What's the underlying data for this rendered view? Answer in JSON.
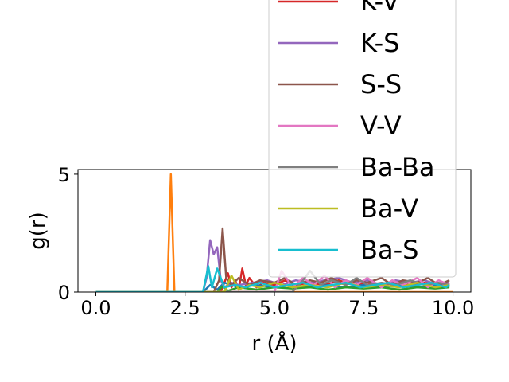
{
  "chart_data": {
    "type": "line",
    "title": "",
    "xlabel": "r (Å)",
    "ylabel": "g(r)",
    "xlim": [
      -0.5,
      10.5
    ],
    "ylim": [
      0,
      5.2
    ],
    "xticks": [
      {
        "value": 0.0,
        "label": "0.0"
      },
      {
        "value": 2.5,
        "label": "2.5"
      },
      {
        "value": 5.0,
        "label": "5.0"
      },
      {
        "value": 7.5,
        "label": "7.5"
      },
      {
        "value": 10.0,
        "label": "10.0"
      }
    ],
    "yticks": [
      {
        "value": 0,
        "label": "0"
      },
      {
        "value": 5,
        "label": "5"
      }
    ],
    "grid": false,
    "legend_position": "upper-right",
    "legend_visible": [
      "K-V",
      "K-S",
      "S-S",
      "V-V",
      "Ba-Ba",
      "Ba-V",
      "Ba-S"
    ],
    "series": [
      {
        "name": "",
        "color": "#d62728",
        "x": [
          0,
          3.5,
          3.7,
          3.8,
          3.9,
          4.0,
          4.1,
          4.2,
          4.3,
          4.5,
          4.7,
          5.0,
          5.3,
          5.6,
          6.0,
          6.4,
          6.8,
          7.2,
          7.6,
          8.0,
          8.4,
          8.8,
          9.2,
          9.6,
          9.9
        ],
        "y": [
          0,
          0,
          0.8,
          0.2,
          0.5,
          0.1,
          1.0,
          0.3,
          0.6,
          0.2,
          0.4,
          0.3,
          0.5,
          0.3,
          0.4,
          0.3,
          0.5,
          0.3,
          0.4,
          0.3,
          0.4,
          0.3,
          0.4,
          0.3,
          0.4
        ]
      },
      {
        "name": "",
        "color": "#1f77b4",
        "x": [
          0,
          3.0,
          3.2,
          3.4,
          3.6,
          4.0,
          4.5,
          5.0,
          5.5,
          6.0,
          6.5,
          7.0,
          7.5,
          8.0,
          8.5,
          9.0,
          9.5,
          9.9
        ],
        "y": [
          0,
          0,
          0.3,
          0.1,
          0.4,
          0.2,
          0.3,
          0.2,
          0.3,
          0.2,
          0.3,
          0.2,
          0.3,
          0.2,
          0.3,
          0.2,
          0.3,
          0.2
        ]
      },
      {
        "name": "",
        "color": "#ff7f0e",
        "x": [
          0,
          2.0,
          2.1,
          2.2,
          2.3,
          10.0
        ],
        "y": [
          0,
          0,
          5.0,
          0,
          0,
          0
        ]
      },
      {
        "name": "",
        "color": "#2ca02c",
        "x": [
          0,
          3.4,
          3.55,
          3.7,
          4.0,
          4.5,
          5.0,
          5.5,
          6.0,
          6.5,
          7.0,
          7.5,
          8.0,
          8.5,
          9.0,
          9.5,
          9.9
        ],
        "y": [
          0,
          0,
          0.25,
          0.05,
          0.2,
          0.1,
          0.2,
          0.15,
          0.2,
          0.1,
          0.2,
          0.15,
          0.2,
          0.1,
          0.2,
          0.15,
          0.2
        ]
      },
      {
        "name": "K-S",
        "color": "#9467bd",
        "x": [
          0,
          3.0,
          3.1,
          3.2,
          3.3,
          3.4,
          3.5,
          3.6,
          3.8,
          4.0,
          4.4,
          4.8,
          5.2,
          5.6,
          6.0,
          6.4,
          6.8,
          7.2,
          7.6,
          8.0,
          8.4,
          8.8,
          9.2,
          9.6,
          9.9
        ],
        "y": [
          0,
          0,
          0.6,
          2.2,
          1.6,
          1.9,
          0.5,
          0.2,
          0.4,
          0.3,
          0.4,
          0.5,
          0.3,
          0.5,
          0.4,
          0.5,
          0.6,
          0.4,
          0.5,
          0.3,
          0.5,
          0.4,
          0.5,
          0.3,
          0.4
        ]
      },
      {
        "name": "S-S",
        "color": "#8c564b",
        "x": [
          0,
          3.3,
          3.45,
          3.55,
          3.65,
          3.8,
          4.0,
          4.3,
          4.6,
          5.0,
          5.3,
          5.6,
          6.0,
          6.3,
          6.6,
          7.0,
          7.3,
          7.6,
          8.0,
          8.3,
          8.6,
          9.0,
          9.3,
          9.6,
          9.9
        ],
        "y": [
          0,
          0,
          0.5,
          2.7,
          0.6,
          0.3,
          0.6,
          0.3,
          0.5,
          0.4,
          0.6,
          0.3,
          0.5,
          0.4,
          0.6,
          0.3,
          0.5,
          0.4,
          0.6,
          0.3,
          0.5,
          0.4,
          0.6,
          0.3,
          0.5
        ]
      },
      {
        "name": "V-V",
        "color": "#e377c2",
        "x": [
          0,
          5.0,
          5.2,
          5.5,
          5.8,
          6.1,
          6.4,
          6.7,
          7.0,
          7.3,
          7.6,
          8.0,
          8.3,
          8.6,
          9.0,
          9.3,
          9.6,
          9.9
        ],
        "y": [
          0,
          0,
          0.9,
          0.2,
          0.6,
          0.3,
          0.7,
          0.2,
          0.5,
          0.3,
          0.6,
          0.2,
          0.5,
          0.3,
          0.6,
          0.2,
          0.5,
          0.3
        ]
      },
      {
        "name": "Ba-Ba",
        "color": "#7f7f7f",
        "x": [
          0,
          5.5,
          5.8,
          6.0,
          6.3,
          6.6,
          7.0,
          7.3,
          7.6,
          8.0,
          8.4,
          8.8,
          9.2,
          9.6,
          9.9
        ],
        "y": [
          0,
          0,
          0.5,
          0.9,
          0.3,
          0.5,
          0.3,
          0.6,
          0.3,
          0.4,
          0.3,
          0.5,
          0.3,
          0.4,
          0.3
        ]
      },
      {
        "name": "Ba-V",
        "color": "#bcbd22",
        "x": [
          0,
          3.6,
          3.8,
          4.0,
          4.3,
          4.6,
          5.0,
          5.5,
          6.0,
          6.5,
          7.0,
          7.5,
          8.0,
          8.5,
          9.0,
          9.5,
          9.9
        ],
        "y": [
          0,
          0,
          0.7,
          0.1,
          0.3,
          0.2,
          0.4,
          0.2,
          0.3,
          0.2,
          0.4,
          0.2,
          0.3,
          0.2,
          0.4,
          0.2,
          0.3
        ]
      },
      {
        "name": "Ba-S",
        "color": "#17becf",
        "x": [
          0,
          3.0,
          3.15,
          3.25,
          3.4,
          3.6,
          3.9,
          4.2,
          4.6,
          5.0,
          5.4,
          5.8,
          6.2,
          6.6,
          7.0,
          7.4,
          7.8,
          8.2,
          8.6,
          9.0,
          9.4,
          9.8,
          9.9
        ],
        "y": [
          0,
          0,
          1.1,
          0.2,
          1.0,
          0.2,
          0.3,
          0.2,
          0.4,
          0.2,
          0.3,
          0.4,
          0.2,
          0.3,
          0.4,
          0.2,
          0.3,
          0.4,
          0.2,
          0.3,
          0.4,
          0.2,
          0.3
        ]
      }
    ]
  }
}
